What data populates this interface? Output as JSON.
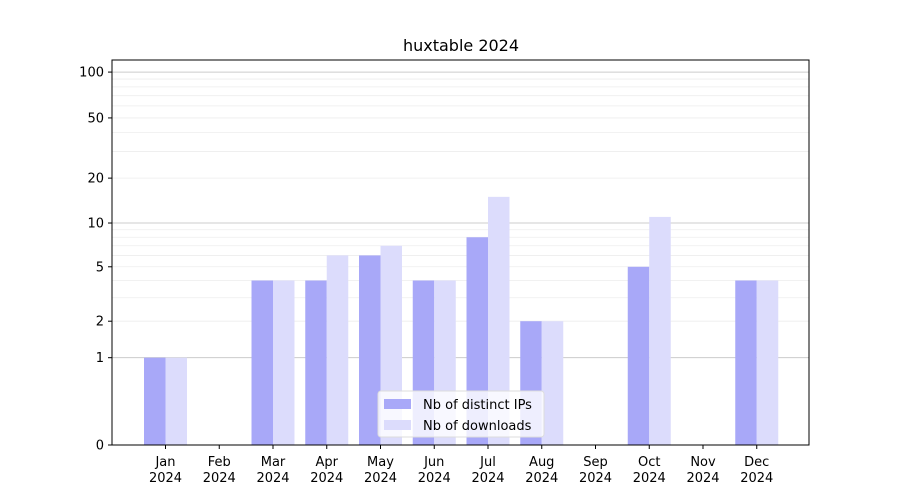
{
  "chart_data": {
    "type": "bar",
    "title": "huxtable 2024",
    "xlabel": "",
    "ylabel": "",
    "yscale": "symlog",
    "ylim": [
      0,
      120
    ],
    "yticks": [
      0,
      1,
      2,
      5,
      10,
      20,
      50,
      100
    ],
    "grid": "y",
    "legend_position": "bottom-center",
    "categories": [
      "Jan\n2024",
      "Feb\n2024",
      "Mar\n2024",
      "Apr\n2024",
      "May\n2024",
      "Jun\n2024",
      "Jul\n2024",
      "Aug\n2024",
      "Sep\n2024",
      "Oct\n2024",
      "Nov\n2024",
      "Dec\n2024"
    ],
    "series": [
      {
        "name": "Nb of distinct IPs",
        "color": "#a8a8f8",
        "values": [
          1,
          0,
          4,
          4,
          6,
          4,
          8,
          2,
          0,
          5,
          0,
          4
        ]
      },
      {
        "name": "Nb of downloads",
        "color": "#dcdcfc",
        "values": [
          1,
          0,
          4,
          6,
          7,
          4,
          15,
          2,
          0,
          11,
          0,
          4
        ]
      }
    ]
  }
}
